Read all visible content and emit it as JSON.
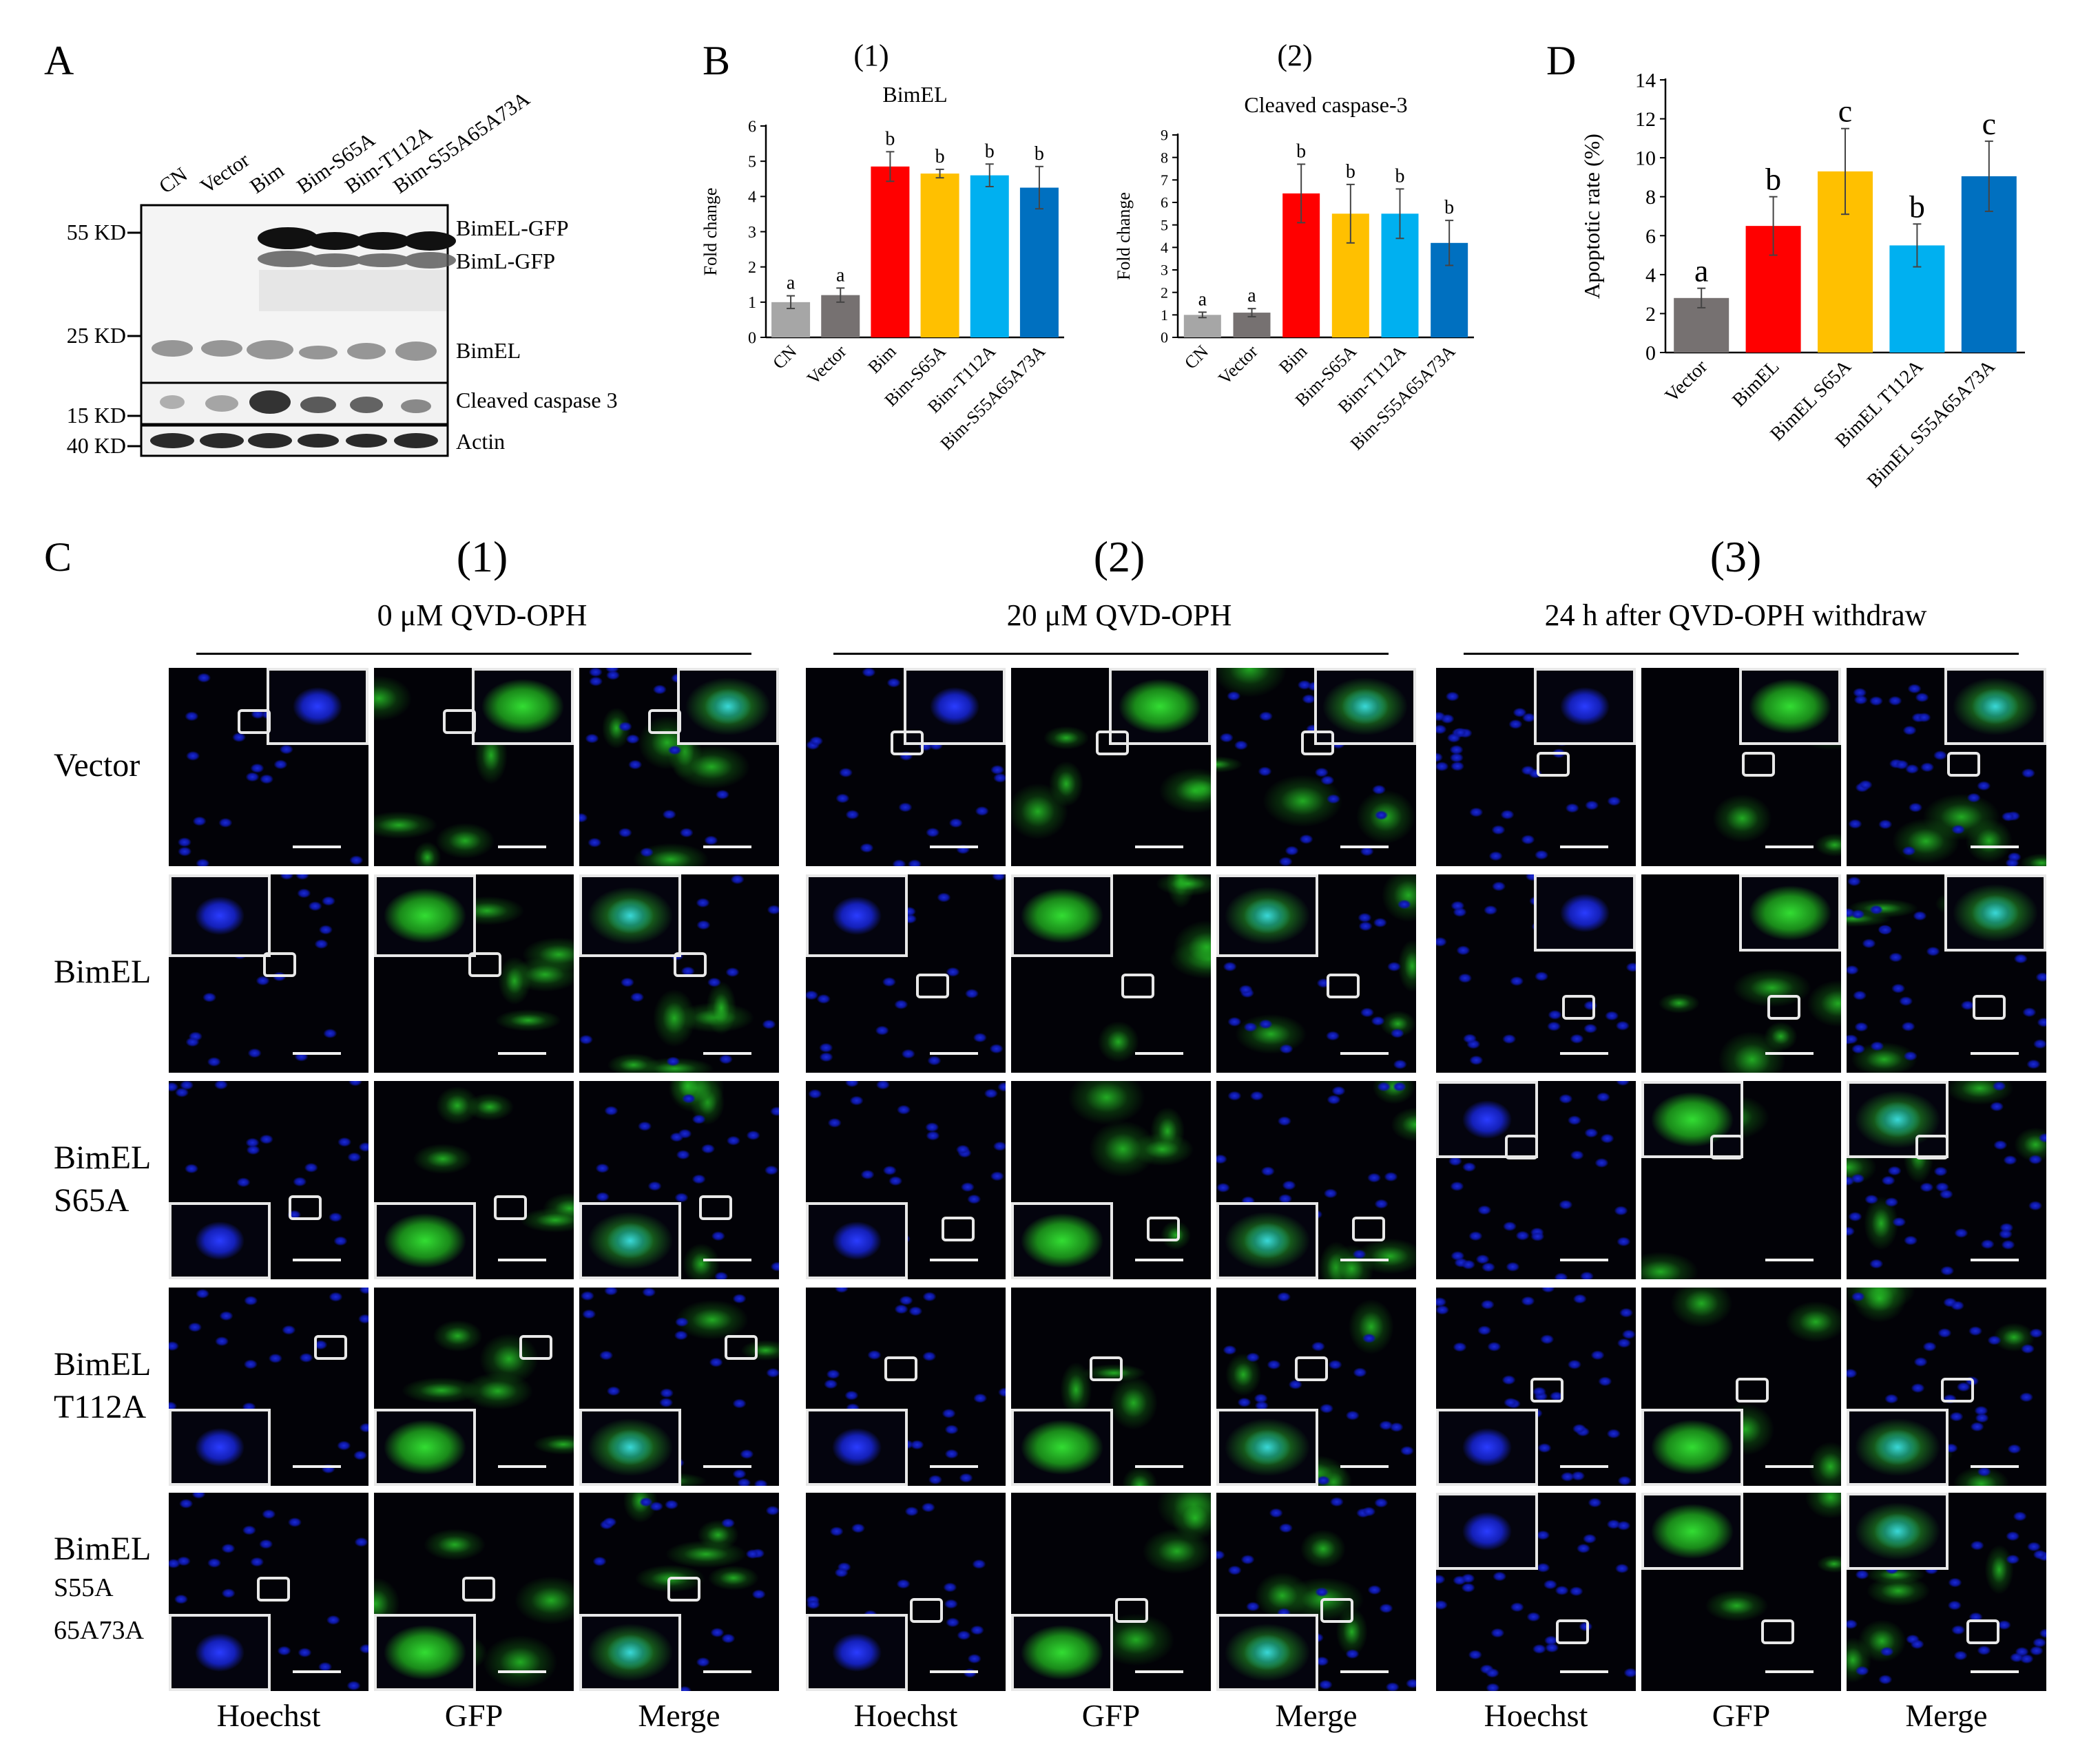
{
  "panels": {
    "A": "A",
    "B": "B",
    "C": "C",
    "D": "D"
  },
  "blot": {
    "lanes": [
      "CN",
      "Vector",
      "Bim",
      "Bim-S65A",
      "Bim-T112A",
      "Bim-S55A65A73A"
    ],
    "markers": [
      "55 KD",
      "25 KD",
      "15 KD",
      "40 KD"
    ],
    "bands": [
      "BimEL-GFP",
      "BimL-GFP",
      "BimEL",
      "Cleaved caspase 3",
      "Actin"
    ]
  },
  "chart_data": [
    {
      "type": "bar",
      "panel_label": "(1)",
      "title": "BimEL",
      "ylabel": "Fold change",
      "ylim": [
        0,
        6
      ],
      "yticks": [
        0,
        1,
        2,
        3,
        4,
        5,
        6
      ],
      "categories": [
        "CN",
        "Vector",
        "Bim",
        "Bim-S65A",
        "Bim-T112A",
        "Bim-S55A65A73A"
      ],
      "values": [
        1.0,
        1.2,
        4.85,
        4.65,
        4.6,
        4.25
      ],
      "errors": [
        0.18,
        0.2,
        0.42,
        0.12,
        0.32,
        0.6
      ],
      "letters": [
        "a",
        "a",
        "b",
        "b",
        "b",
        "b"
      ],
      "colors": [
        "#a6a6a6",
        "#767171",
        "#ff0000",
        "#ffc000",
        "#00b0f0",
        "#0070c0"
      ]
    },
    {
      "type": "bar",
      "panel_label": "(2)",
      "title": "Cleaved caspase-3",
      "ylabel": "Fold change",
      "ylim": [
        0,
        9
      ],
      "yticks": [
        0,
        1,
        2,
        3,
        4,
        5,
        6,
        7,
        8,
        9
      ],
      "categories": [
        "CN",
        "Vector",
        "Bim",
        "Bim-S65A",
        "Bim-T112A",
        "Bim-S55A65A73A"
      ],
      "values": [
        1.0,
        1.1,
        6.4,
        5.5,
        5.5,
        4.2
      ],
      "errors": [
        0.12,
        0.18,
        1.3,
        1.3,
        1.1,
        1.0
      ],
      "letters": [
        "a",
        "a",
        "b",
        "b",
        "b",
        "b"
      ],
      "colors": [
        "#a6a6a6",
        "#767171",
        "#ff0000",
        "#ffc000",
        "#00b0f0",
        "#0070c0"
      ]
    },
    {
      "type": "bar",
      "title": "",
      "ylabel": "Apoptotic rate (%)",
      "ylim": [
        0,
        14
      ],
      "yticks": [
        0,
        2,
        4,
        6,
        8,
        10,
        12,
        14
      ],
      "categories": [
        "Vector",
        "BimEL",
        "BimEL S65A",
        "BimEL T112A",
        "BimEL S55A65A73A"
      ],
      "values": [
        2.8,
        6.5,
        9.3,
        5.5,
        9.05
      ],
      "errors": [
        0.5,
        1.5,
        2.2,
        1.1,
        1.8
      ],
      "letters": [
        "a",
        "b",
        "c",
        "b",
        "c"
      ],
      "colors": [
        "#767171",
        "#ff0000",
        "#ffc000",
        "#00b0f0",
        "#0070c0"
      ]
    }
  ],
  "microscopy": {
    "groups": [
      {
        "number": "(1)",
        "condition": "0 μM QVD-OPH"
      },
      {
        "number": "(2)",
        "condition": "20  μM QVD-OPH"
      },
      {
        "number": "(3)",
        "condition": "24 h after  QVD-OPH  withdraw"
      }
    ],
    "rows": [
      {
        "line1": "Vector",
        "line2": "",
        "line3": ""
      },
      {
        "line1": "BimEL",
        "line2": "",
        "line3": ""
      },
      {
        "line1": "BimEL",
        "line2": "S65A",
        "line3": ""
      },
      {
        "line1": "BimEL",
        "line2": "T112A",
        "line3": ""
      },
      {
        "line1": "BimEL",
        "line2": "S55A",
        "line3": "65A73A"
      }
    ],
    "channels": [
      "Hoechst",
      "GFP",
      "Merge"
    ]
  }
}
